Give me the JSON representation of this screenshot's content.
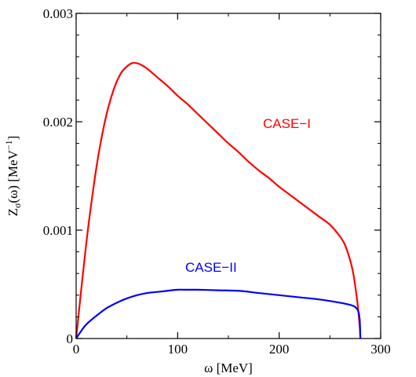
{
  "chart_data": {
    "type": "line",
    "xlabel": "ω [MeV]",
    "ylabel": "Z",
    "ylabel_sub": "σ",
    "ylabel_mid": "(ω) [MeV",
    "ylabel_sup": "−1",
    "ylabel_end": "]",
    "xlim": [
      0,
      300
    ],
    "ylim": [
      0,
      0.003
    ],
    "x_ticks": [
      0,
      100,
      200,
      300
    ],
    "x_tick_labels": [
      "0",
      "100",
      "200",
      "300"
    ],
    "y_ticks": [
      0,
      0.001,
      0.002,
      0.003
    ],
    "y_tick_labels": [
      "0",
      "0.001",
      "0.002",
      "0.003"
    ],
    "grid": false,
    "series": [
      {
        "name": "CASE−I",
        "color": "#ff0000",
        "x": [
          0,
          5,
          10,
          15,
          20,
          25,
          30,
          35,
          40,
          45,
          50,
          55,
          60,
          65,
          70,
          75,
          80,
          90,
          100,
          110,
          120,
          130,
          140,
          150,
          160,
          170,
          180,
          190,
          200,
          210,
          220,
          230,
          240,
          250,
          260,
          265,
          270,
          273,
          275,
          277,
          278,
          279,
          279.5,
          280
        ],
        "y": [
          0,
          0.00045,
          0.00088,
          0.00125,
          0.00158,
          0.00185,
          0.00207,
          0.00224,
          0.00237,
          0.00246,
          0.00251,
          0.00254,
          0.00254,
          0.00252,
          0.00249,
          0.00245,
          0.00241,
          0.00233,
          0.00224,
          0.00216,
          0.00207,
          0.00198,
          0.00189,
          0.0018,
          0.00172,
          0.00163,
          0.00155,
          0.00148,
          0.0014,
          0.00133,
          0.00126,
          0.00119,
          0.00112,
          0.00105,
          0.00094,
          0.00086,
          0.00072,
          0.0006,
          0.00048,
          0.00034,
          0.00025,
          0.00015,
          9e-05,
          0
        ]
      },
      {
        "name": "CASE−II",
        "color": "#0000ff",
        "x": [
          0,
          5,
          10,
          20,
          30,
          40,
          50,
          60,
          70,
          80,
          90,
          100,
          110,
          120,
          140,
          160,
          180,
          200,
          220,
          240,
          260,
          270,
          275,
          278,
          279,
          279.5,
          280
        ],
        "y": [
          0,
          7e-05,
          0.00013,
          0.00021,
          0.00028,
          0.00033,
          0.00037,
          0.0004,
          0.00042,
          0.00043,
          0.00044,
          0.00045,
          0.00045,
          0.00045,
          0.000445,
          0.00044,
          0.00042,
          0.0004,
          0.00038,
          0.00036,
          0.00033,
          0.00031,
          0.00029,
          0.00025,
          0.0002,
          0.00015,
          0
        ]
      }
    ]
  }
}
